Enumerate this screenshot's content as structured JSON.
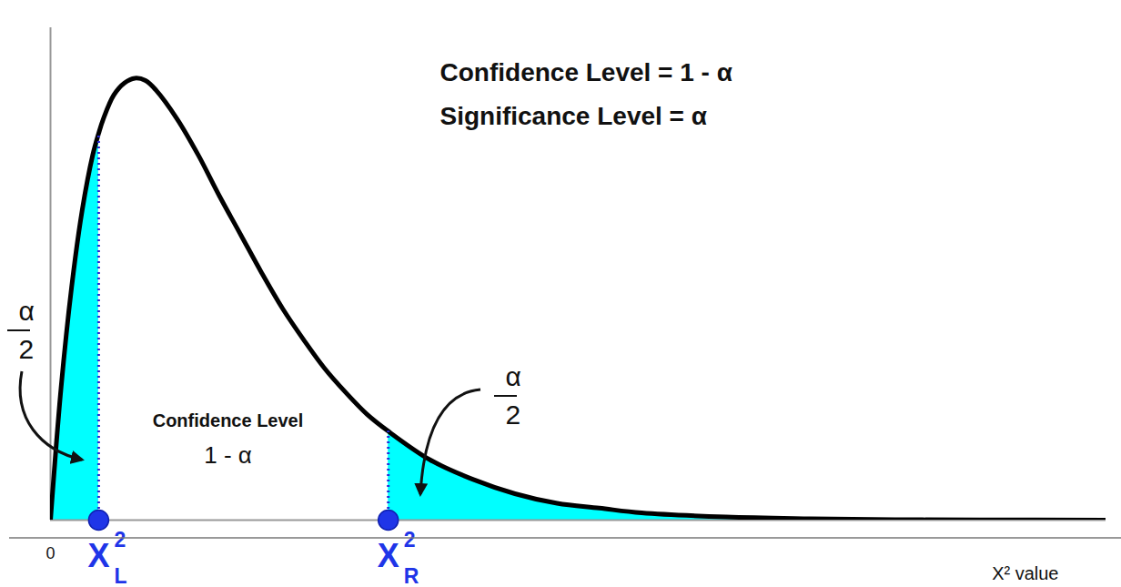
{
  "chart_data": {
    "type": "area",
    "title_lines": [
      "Confidence Level = 1 - α",
      "Significance Level = α"
    ],
    "x_label": "X² value",
    "xlim": [
      0,
      25
    ],
    "xticks": [
      0
    ],
    "ylim": [
      0,
      0.205
    ],
    "tick_labels": "x",
    "color": "#00ffff",
    "x": [
      0,
      0.25,
      0.5,
      0.75,
      1,
      1.14,
      1.25,
      1.5,
      1.75,
      2,
      2.25,
      2.5,
      3,
      3.5,
      4,
      4.5,
      5,
      5.5,
      6,
      6.5,
      7,
      7.5,
      8,
      9,
      10,
      11,
      12,
      13,
      14,
      16,
      18,
      20,
      22,
      25
    ],
    "values": [
      0,
      0.055,
      0.097,
      0.129,
      0.152,
      0.161,
      0.167,
      0.177,
      0.182,
      0.184,
      0.183,
      0.179,
      0.167,
      0.152,
      0.135,
      0.119,
      0.103,
      0.088,
      0.075,
      0.063,
      0.053,
      0.044,
      0.037,
      0.025,
      0.017,
      0.011,
      0.007,
      0.005,
      0.003,
      0.0013,
      0.0006,
      0.0002,
      0.0001,
      0
    ],
    "critical_values": [
      {
        "value": 1.14,
        "label": "X",
        "superscript": "2",
        "subscript": "L"
      },
      {
        "value": 8,
        "label": "X",
        "superscript": "2",
        "subscript": "R"
      }
    ],
    "tail_labels": [
      {
        "numerator": "α",
        "denominator": "2"
      },
      {
        "numerator": "α",
        "denominator": "2"
      }
    ],
    "center_label": [
      "Confidence Level",
      "1 - α"
    ]
  }
}
